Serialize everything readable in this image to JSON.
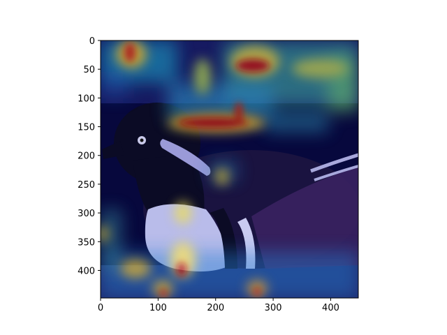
{
  "figure": {
    "background": "#ffffff",
    "image_description_hint": "",
    "colormap": "jet",
    "axes": {
      "x_ticks": [
        0,
        100,
        200,
        300,
        400
      ],
      "y_ticks": [
        0,
        50,
        100,
        150,
        200,
        250,
        300,
        350,
        400
      ],
      "x_range": [
        0,
        448
      ],
      "y_range": [
        0,
        448
      ]
    }
  }
}
